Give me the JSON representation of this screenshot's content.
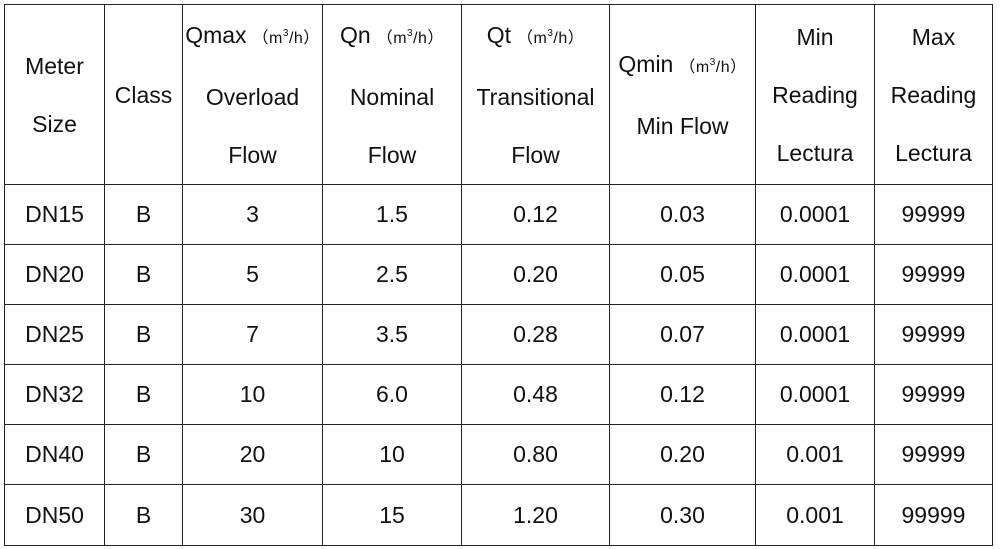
{
  "table": {
    "headers": [
      {
        "lines": [
          "Meter",
          "Size"
        ]
      },
      {
        "lines": [
          "Class"
        ]
      },
      {
        "main": "Qmax",
        "unit_open": "（m",
        "unit_sup": "3",
        "unit_close": "/h）",
        "lines": [
          "Overload",
          "Flow"
        ]
      },
      {
        "main": "Qn",
        "unit_open": "（m",
        "unit_sup": "3",
        "unit_close": "/h）",
        "lines": [
          "Nominal",
          "Flow"
        ]
      },
      {
        "main": "Qt",
        "unit_open": "（m",
        "unit_sup": "3",
        "unit_close": "/h）",
        "lines": [
          "Transitional",
          "Flow"
        ]
      },
      {
        "main": "Qmin",
        "unit_open": "（m",
        "unit_sup": "3",
        "unit_close": "/h）",
        "lines": [
          "Min Flow"
        ]
      },
      {
        "lines": [
          "Min",
          "Reading",
          "Lectura"
        ]
      },
      {
        "lines": [
          "Max",
          "Reading",
          "Lectura"
        ]
      }
    ],
    "rows": [
      [
        "DN15",
        "B",
        "3",
        "1.5",
        "0.12",
        "0.03",
        "0.0001",
        "99999"
      ],
      [
        "DN20",
        "B",
        "5",
        "2.5",
        "0.20",
        "0.05",
        "0.0001",
        "99999"
      ],
      [
        "DN25",
        "B",
        "7",
        "3.5",
        "0.28",
        "0.07",
        "0.0001",
        "99999"
      ],
      [
        "DN32",
        "B",
        "10",
        "6.0",
        "0.48",
        "0.12",
        "0.0001",
        "99999"
      ],
      [
        "DN40",
        "B",
        "20",
        "10",
        "0.80",
        "0.20",
        "0.001",
        "99999"
      ],
      [
        "DN50",
        "B",
        "30",
        "15",
        "1.20",
        "0.30",
        "0.001",
        "99999"
      ]
    ]
  }
}
